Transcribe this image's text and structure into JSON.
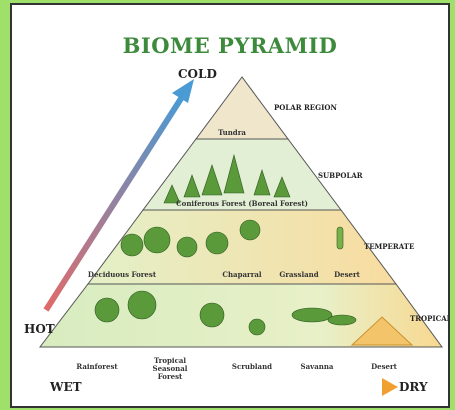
{
  "title": "BIOME PYRAMID",
  "directions": {
    "top": "COLD",
    "bottom_left": "HOT",
    "left": "WET",
    "right": "DRY"
  },
  "tiers": [
    {
      "region": "POLAR REGION",
      "biomes": [
        "Tundra"
      ]
    },
    {
      "region": "SUBPOLAR",
      "biomes": [
        "Coniferous Forest (Boreal Forest)"
      ]
    },
    {
      "region": "TEMPERATE",
      "biomes": [
        "Deciduous Forest",
        "Chaparral",
        "Grassland",
        "Desert"
      ]
    },
    {
      "region": "TROPICAL",
      "biomes": [
        "Rainforest",
        "Tropical Seasonal Forest",
        "Scrubland",
        "Savanna",
        "Desert"
      ]
    }
  ]
}
